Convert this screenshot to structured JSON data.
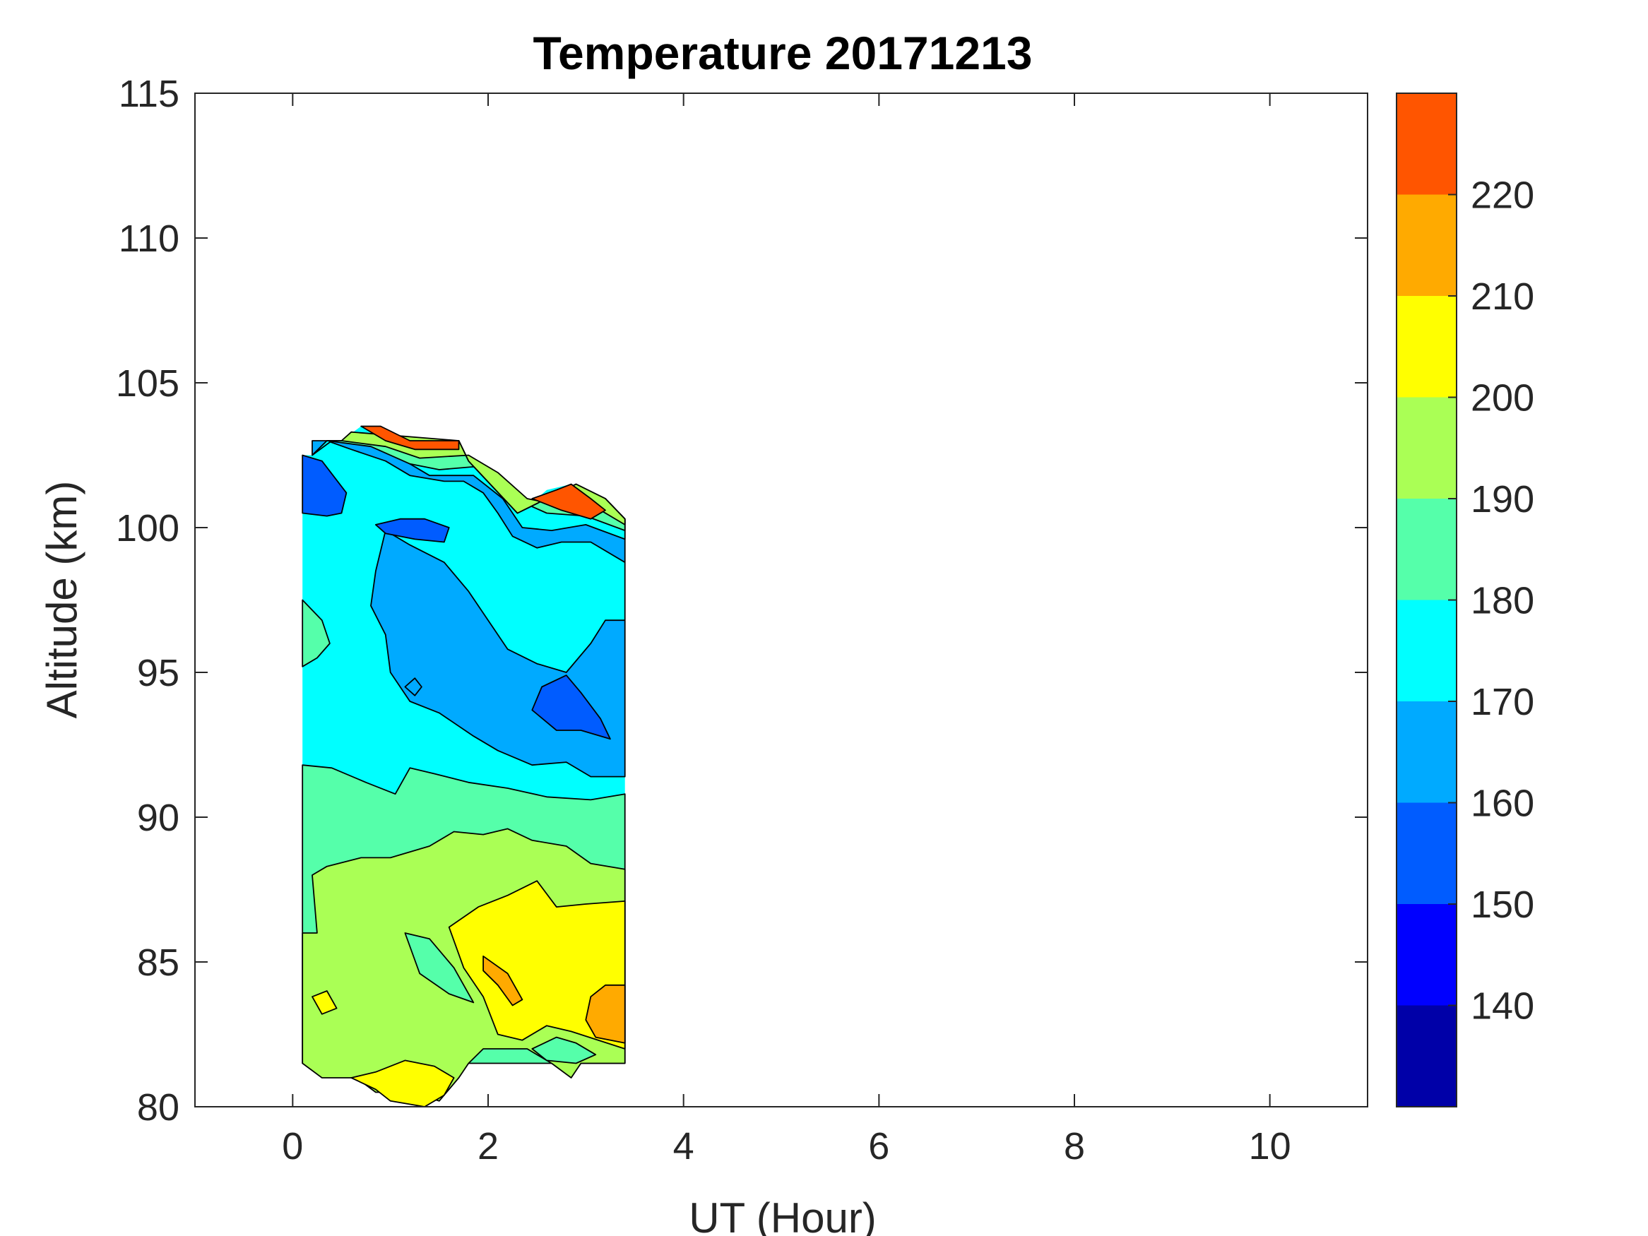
{
  "chart_data": {
    "type": "contourf",
    "title": "Temperature 20171213",
    "xlabel": "UT (Hour)",
    "ylabel": "Altitude (km)",
    "xlim": [
      -1,
      11
    ],
    "ylim": [
      80,
      115
    ],
    "xticks": [
      0,
      2,
      4,
      6,
      8,
      10
    ],
    "yticks": [
      80,
      85,
      90,
      95,
      100,
      105,
      110,
      115
    ],
    "colorbar": {
      "levels": [
        130,
        140,
        150,
        160,
        170,
        180,
        190,
        200,
        210,
        220,
        230
      ],
      "tick_labels": [
        140,
        150,
        160,
        170,
        180,
        190,
        200,
        210,
        220
      ],
      "colors": [
        "#0000a8",
        "#0000ff",
        "#005cff",
        "#00aaff",
        "#00ffff",
        "#55ffaa",
        "#aaff55",
        "#ffff00",
        "#ffaa00",
        "#ff5500"
      ]
    },
    "data_extent": {
      "x": [
        0.1,
        3.4
      ],
      "y": [
        80,
        103.5
      ]
    },
    "regions": [
      {
        "band": [
          130,
          220
        ],
        "level": 170,
        "points": [
          [
            0.1,
            81.5
          ],
          [
            0.3,
            81
          ],
          [
            0.65,
            81
          ],
          [
            0.85,
            80.5
          ],
          [
            1.2,
            80.5
          ],
          [
            1.5,
            80.2
          ],
          [
            1.7,
            81
          ],
          [
            1.8,
            81.5
          ],
          [
            1.95,
            82
          ],
          [
            2.4,
            82
          ],
          [
            2.65,
            81.5
          ],
          [
            2.85,
            81
          ],
          [
            2.95,
            81.5
          ],
          [
            3.4,
            81.5
          ],
          [
            3.4,
            99.5
          ],
          [
            3.2,
            100.5
          ],
          [
            3.0,
            101.2
          ],
          [
            2.85,
            101.5
          ],
          [
            2.6,
            101.3
          ],
          [
            2.4,
            100.7
          ],
          [
            2.25,
            100.2
          ],
          [
            2.05,
            101.5
          ],
          [
            1.85,
            102.3
          ],
          [
            1.7,
            102.5
          ],
          [
            1.7,
            103
          ],
          [
            1.2,
            103
          ],
          [
            0.9,
            103.5
          ],
          [
            0.7,
            103.5
          ],
          [
            0.5,
            103
          ],
          [
            0.3,
            103
          ],
          [
            0.2,
            102.5
          ],
          [
            0.1,
            102.5
          ]
        ]
      },
      {
        "band": [
          160,
          170
        ],
        "level": 160,
        "points": [
          [
            0.2,
            102.5
          ],
          [
            0.35,
            103
          ],
          [
            0.6,
            102.7
          ],
          [
            0.95,
            102.3
          ],
          [
            1.2,
            101.8
          ],
          [
            1.55,
            101.6
          ],
          [
            1.75,
            101.6
          ],
          [
            1.95,
            101.2
          ],
          [
            2.1,
            100.5
          ],
          [
            2.25,
            99.7
          ],
          [
            2.5,
            99.3
          ],
          [
            2.75,
            99.5
          ],
          [
            3.05,
            99.5
          ],
          [
            3.4,
            98.8
          ],
          [
            3.4,
            96.8
          ],
          [
            3.2,
            96.8
          ],
          [
            3.05,
            96
          ],
          [
            2.8,
            95
          ],
          [
            2.5,
            95.3
          ],
          [
            2.2,
            95.8
          ],
          [
            2.0,
            96.8
          ],
          [
            1.8,
            97.8
          ],
          [
            1.55,
            98.8
          ],
          [
            1.2,
            99.4
          ],
          [
            0.95,
            99.9
          ],
          [
            0.85,
            98.5
          ],
          [
            0.8,
            97.3
          ],
          [
            0.95,
            96.3
          ],
          [
            1.0,
            95
          ],
          [
            1.2,
            94
          ],
          [
            1.5,
            93.6
          ],
          [
            1.85,
            92.8
          ],
          [
            2.1,
            92.3
          ],
          [
            2.45,
            91.8
          ],
          [
            2.8,
            91.9
          ],
          [
            3.05,
            91.4
          ],
          [
            3.4,
            91.4
          ],
          [
            3.4,
            100.3
          ],
          [
            3.2,
            101
          ],
          [
            2.9,
            101.5
          ],
          [
            2.3,
            100.5
          ],
          [
            1.8,
            102.3
          ],
          [
            1.7,
            103
          ],
          [
            0.4,
            103
          ],
          [
            0.2,
            103
          ]
        ]
      },
      {
        "band": [
          150,
          160
        ],
        "level": 150,
        "points": [
          [
            0.1,
            102.5
          ],
          [
            0.3,
            102.3
          ],
          [
            0.55,
            101.2
          ],
          [
            0.5,
            100.5
          ],
          [
            0.35,
            100.4
          ],
          [
            0.1,
            100.5
          ]
        ]
      },
      {
        "band": [
          150,
          160
        ],
        "level": 150,
        "points": [
          [
            0.85,
            100.1
          ],
          [
            1.1,
            100.3
          ],
          [
            1.35,
            100.3
          ],
          [
            1.6,
            100
          ],
          [
            1.55,
            99.5
          ],
          [
            1.25,
            99.6
          ],
          [
            0.95,
            99.8
          ]
        ]
      },
      {
        "band": [
          150,
          160
        ],
        "level": 150,
        "points": [
          [
            2.45,
            93.7
          ],
          [
            2.7,
            93
          ],
          [
            2.95,
            93
          ],
          [
            3.25,
            92.7
          ],
          [
            3.15,
            93.4
          ],
          [
            2.95,
            94.3
          ],
          [
            2.8,
            94.9
          ],
          [
            2.55,
            94.5
          ]
        ]
      },
      {
        "band": [
          180,
          190
        ],
        "level": 180,
        "points": [
          [
            0.1,
            81.5
          ],
          [
            0.1,
            91.8
          ],
          [
            0.4,
            91.7
          ],
          [
            0.75,
            91.2
          ],
          [
            1.05,
            90.8
          ],
          [
            1.2,
            91.7
          ],
          [
            1.45,
            91.5
          ],
          [
            1.8,
            91.2
          ],
          [
            2.2,
            91
          ],
          [
            2.6,
            90.7
          ],
          [
            3.05,
            90.6
          ],
          [
            3.4,
            90.8
          ],
          [
            3.4,
            81.5
          ]
        ]
      },
      {
        "band": [
          180,
          190
        ],
        "level": 180,
        "points": [
          [
            0.1,
            97.5
          ],
          [
            0.3,
            96.8
          ],
          [
            0.38,
            96
          ],
          [
            0.25,
            95.5
          ],
          [
            0.1,
            95.2
          ]
        ]
      },
      {
        "band": [
          190,
          200
        ],
        "level": 190,
        "points": [
          [
            0.1,
            81.5
          ],
          [
            0.1,
            86
          ],
          [
            0.25,
            86
          ],
          [
            0.2,
            88
          ],
          [
            0.35,
            88.3
          ],
          [
            0.7,
            88.6
          ],
          [
            1.0,
            88.6
          ],
          [
            1.4,
            89
          ],
          [
            1.65,
            89.5
          ],
          [
            1.95,
            89.4
          ],
          [
            2.2,
            89.6
          ],
          [
            2.45,
            89.2
          ],
          [
            2.8,
            89
          ],
          [
            3.05,
            88.4
          ],
          [
            3.4,
            88.2
          ],
          [
            3.4,
            81.5
          ],
          [
            2.95,
            81.5
          ],
          [
            2.85,
            81
          ],
          [
            2.65,
            81.5
          ],
          [
            2.4,
            82
          ],
          [
            1.95,
            82
          ],
          [
            1.8,
            81.5
          ],
          [
            1.7,
            81
          ],
          [
            1.5,
            80.2
          ],
          [
            1.2,
            80.5
          ],
          [
            0.85,
            80.5
          ],
          [
            0.65,
            81
          ],
          [
            0.3,
            81
          ]
        ]
      },
      {
        "band": [
          200,
          210
        ],
        "level": 200,
        "points": [
          [
            1.6,
            86.2
          ],
          [
            1.9,
            86.9
          ],
          [
            2.2,
            87.3
          ],
          [
            2.5,
            87.8
          ],
          [
            2.7,
            86.9
          ],
          [
            3.0,
            87
          ],
          [
            3.4,
            87.1
          ],
          [
            3.4,
            82
          ],
          [
            2.85,
            82.6
          ],
          [
            2.6,
            82.8
          ],
          [
            2.35,
            82.3
          ],
          [
            2.1,
            82.5
          ],
          [
            1.95,
            83.8
          ],
          [
            1.75,
            84.8
          ]
        ]
      },
      {
        "band": [
          200,
          210
        ],
        "level": 200,
        "points": [
          [
            0.6,
            81
          ],
          [
            0.85,
            80.6
          ],
          [
            1.0,
            80.2
          ],
          [
            1.35,
            80
          ],
          [
            1.55,
            80.4
          ],
          [
            1.65,
            81
          ],
          [
            1.45,
            81.4
          ],
          [
            1.15,
            81.6
          ],
          [
            0.85,
            81.2
          ]
        ]
      },
      {
        "band": [
          210,
          220
        ],
        "level": 210,
        "points": [
          [
            3.05,
            83.8
          ],
          [
            3.2,
            84.2
          ],
          [
            3.4,
            84.2
          ],
          [
            3.4,
            82.2
          ],
          [
            3.1,
            82.4
          ],
          [
            3.0,
            83
          ]
        ]
      },
      {
        "band": [
          210,
          220
        ],
        "level": 210,
        "points": [
          [
            1.95,
            85.2
          ],
          [
            2.2,
            84.6
          ],
          [
            2.35,
            83.7
          ],
          [
            2.25,
            83.5
          ],
          [
            2.1,
            84.2
          ],
          [
            1.95,
            84.7
          ]
        ]
      },
      {
        "band": [
          170,
          180
        ],
        "level": 170,
        "points": [
          [
            0.2,
            102.5
          ],
          [
            0.35,
            103
          ],
          [
            0.7,
            103
          ],
          [
            1.1,
            102.4
          ],
          [
            1.4,
            101.8
          ],
          [
            1.85,
            101.8
          ],
          [
            2.15,
            101
          ],
          [
            2.35,
            100
          ],
          [
            2.65,
            99.9
          ],
          [
            3.0,
            100.1
          ],
          [
            3.4,
            99.6
          ],
          [
            3.4,
            100.3
          ],
          [
            3.2,
            101
          ],
          [
            2.9,
            101.5
          ],
          [
            2.3,
            100.5
          ],
          [
            1.8,
            102.3
          ],
          [
            1.7,
            103
          ],
          [
            0.4,
            103
          ]
        ]
      },
      {
        "band": [
          180,
          190
        ],
        "level": 180,
        "points": [
          [
            0.35,
            103
          ],
          [
            0.8,
            102.8
          ],
          [
            1.2,
            102.2
          ],
          [
            1.5,
            102
          ],
          [
            1.85,
            102.1
          ],
          [
            2.2,
            101.4
          ],
          [
            2.4,
            100.8
          ],
          [
            2.6,
            100.5
          ],
          [
            3.0,
            100.4
          ],
          [
            3.4,
            99.9
          ],
          [
            3.4,
            100.3
          ],
          [
            3.2,
            101
          ],
          [
            2.9,
            101.5
          ],
          [
            2.3,
            100.5
          ],
          [
            1.8,
            102.3
          ],
          [
            1.7,
            103
          ],
          [
            0.4,
            103
          ]
        ]
      },
      {
        "band": [
          190,
          210
        ],
        "level": 190,
        "points": [
          [
            0.5,
            103
          ],
          [
            0.95,
            102.8
          ],
          [
            1.3,
            102.4
          ],
          [
            1.8,
            102.5
          ],
          [
            2.1,
            101.9
          ],
          [
            2.4,
            101
          ],
          [
            2.7,
            100.8
          ],
          [
            3.05,
            100.8
          ],
          [
            3.4,
            100.1
          ],
          [
            3.4,
            100.3
          ],
          [
            3.2,
            101
          ],
          [
            2.9,
            101.5
          ],
          [
            2.3,
            100.5
          ],
          [
            1.8,
            102.3
          ],
          [
            1.7,
            103
          ],
          [
            0.6,
            103.3
          ]
        ]
      },
      {
        "band": [
          220,
          230
        ],
        "level": 220,
        "points": [
          [
            0.7,
            103.5
          ],
          [
            0.9,
            103.5
          ],
          [
            1.2,
            103
          ],
          [
            1.7,
            103
          ],
          [
            1.7,
            102.7
          ],
          [
            1.25,
            102.7
          ],
          [
            0.95,
            103
          ]
        ]
      },
      {
        "band": [
          220,
          230
        ],
        "level": 220,
        "points": [
          [
            2.45,
            101
          ],
          [
            2.7,
            101.3
          ],
          [
            2.85,
            101.5
          ],
          [
            3.05,
            101
          ],
          [
            3.2,
            100.6
          ],
          [
            3.05,
            100.3
          ],
          [
            2.75,
            100.6
          ]
        ]
      },
      {
        "band": [
          160,
          170
        ],
        "level": 160,
        "points": [
          [
            1.15,
            94.5
          ],
          [
            1.25,
            94.8
          ],
          [
            1.32,
            94.5
          ],
          [
            1.25,
            94.2
          ]
        ]
      },
      {
        "band": [
          180,
          190
        ],
        "level": 180,
        "points": [
          [
            1.15,
            86
          ],
          [
            1.3,
            84.6
          ],
          [
            1.6,
            83.9
          ],
          [
            1.85,
            83.6
          ],
          [
            1.65,
            84.8
          ],
          [
            1.4,
            85.8
          ]
        ]
      },
      {
        "band": [
          180,
          190
        ],
        "level": 180,
        "points": [
          [
            2.45,
            82
          ],
          [
            2.7,
            82.4
          ],
          [
            2.9,
            82.2
          ],
          [
            3.1,
            81.8
          ],
          [
            2.9,
            81.5
          ],
          [
            2.6,
            81.6
          ]
        ]
      },
      {
        "band": [
          200,
          210
        ],
        "level": 200,
        "points": [
          [
            0.2,
            83.8
          ],
          [
            0.35,
            84
          ],
          [
            0.45,
            83.4
          ],
          [
            0.3,
            83.2
          ]
        ]
      }
    ]
  }
}
